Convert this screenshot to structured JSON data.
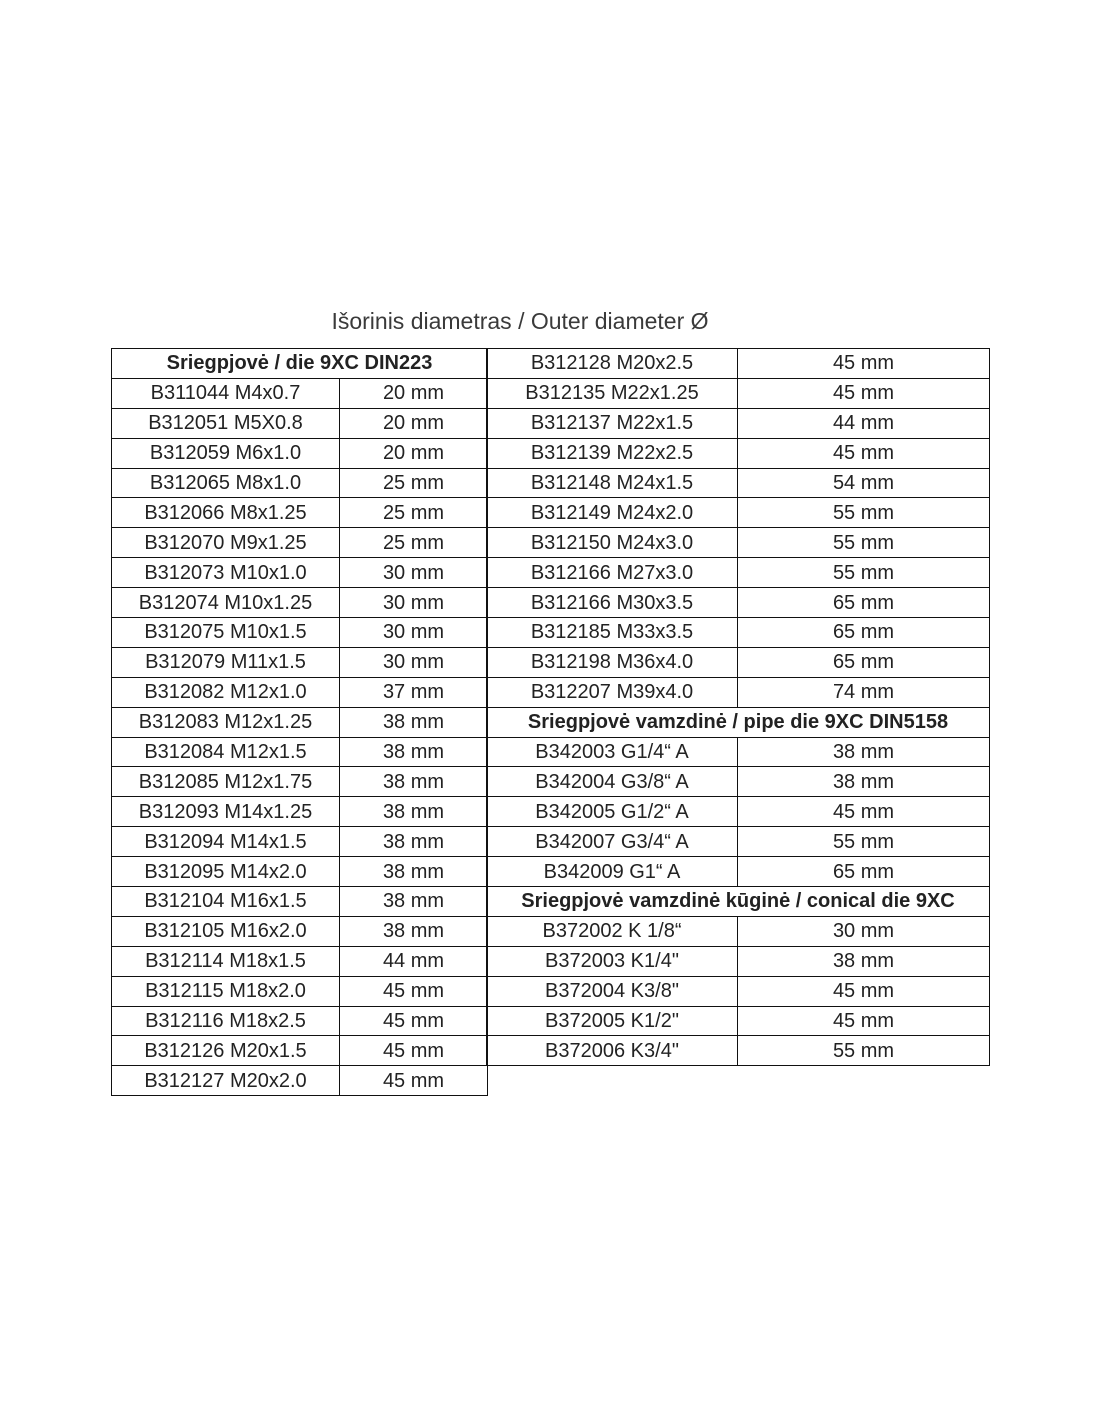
{
  "title": "Išorinis diametras / Outer diameter Ø",
  "left_table": {
    "rows": [
      {
        "header": "Sriegpjovė / die 9XC DIN223"
      },
      {
        "code": "B311044 M4x0.7",
        "diameter": "20 mm"
      },
      {
        "code": "B312051 M5X0.8",
        "diameter": "20 mm"
      },
      {
        "code": "B312059 M6x1.0",
        "diameter": "20 mm"
      },
      {
        "code": "B312065 M8x1.0",
        "diameter": "25 mm"
      },
      {
        "code": "B312066 M8x1.25",
        "diameter": "25 mm"
      },
      {
        "code": "B312070 M9x1.25",
        "diameter": "25 mm"
      },
      {
        "code": "B312073 M10x1.0",
        "diameter": "30 mm"
      },
      {
        "code": "B312074 M10x1.25",
        "diameter": "30 mm"
      },
      {
        "code": "B312075 M10x1.5",
        "diameter": "30 mm"
      },
      {
        "code": "B312079 M11x1.5",
        "diameter": "30 mm"
      },
      {
        "code": "B312082 M12x1.0",
        "diameter": "37 mm"
      },
      {
        "code": "B312083 M12x1.25",
        "diameter": "38 mm"
      },
      {
        "code": "B312084 M12x1.5",
        "diameter": "38 mm"
      },
      {
        "code": "B312085 M12x1.75",
        "diameter": "38 mm"
      },
      {
        "code": "B312093 M14x1.25",
        "diameter": "38 mm"
      },
      {
        "code": "B312094 M14x1.5",
        "diameter": "38 mm"
      },
      {
        "code": "B312095 M14x2.0",
        "diameter": "38 mm"
      },
      {
        "code": "B312104 M16x1.5",
        "diameter": "38 mm"
      },
      {
        "code": "B312105 M16x2.0",
        "diameter": "38 mm"
      },
      {
        "code": "B312114 M18x1.5",
        "diameter": "44 mm"
      },
      {
        "code": "B312115 M18x2.0",
        "diameter": "45 mm"
      },
      {
        "code": "B312116 M18x2.5",
        "diameter": "45 mm"
      },
      {
        "code": "B312126 M20x1.5",
        "diameter": "45 mm"
      },
      {
        "code": "B312127 M20x2.0",
        "diameter": "45 mm"
      }
    ]
  },
  "right_table": {
    "rows": [
      {
        "code": "B312128 M20x2.5",
        "diameter": "45 mm"
      },
      {
        "code": "B312135 M22x1.25",
        "diameter": "45 mm"
      },
      {
        "code": "B312137 M22x1.5",
        "diameter": "44 mm"
      },
      {
        "code": "B312139 M22x2.5",
        "diameter": "45 mm"
      },
      {
        "code": "B312148 M24x1.5",
        "diameter": "54 mm"
      },
      {
        "code": "B312149 M24x2.0",
        "diameter": "55 mm"
      },
      {
        "code": "B312150 M24x3.0",
        "diameter": "55 mm"
      },
      {
        "code": "B312166 M27x3.0",
        "diameter": "55 mm"
      },
      {
        "code": "B312166 M30x3.5",
        "diameter": "65 mm"
      },
      {
        "code": "B312185 M33x3.5",
        "diameter": "65 mm"
      },
      {
        "code": "B312198 M36x4.0",
        "diameter": "65 mm"
      },
      {
        "code": "B312207 M39x4.0",
        "diameter": "74 mm"
      },
      {
        "header": "Sriegpjovė vamzdinė / pipe die 9XC DIN5158"
      },
      {
        "code": "B342003 G1/4“ A",
        "diameter": "38 mm"
      },
      {
        "code": "B342004 G3/8“ A",
        "diameter": "38 mm"
      },
      {
        "code": "B342005 G1/2“ A",
        "diameter": "45 mm"
      },
      {
        "code": "B342007 G3/4“ A",
        "diameter": "55 mm"
      },
      {
        "code": "B342009 G1“ A",
        "diameter": "65 mm"
      },
      {
        "header": "Sriegpjovė vamzdinė kūginė / conical die 9XC"
      },
      {
        "code": "B372002 K 1/8“",
        "diameter": "30 mm"
      },
      {
        "code": "B372003 K1/4\"",
        "diameter": "38 mm"
      },
      {
        "code": "B372004 K3/8\"",
        "diameter": "45 mm"
      },
      {
        "code": "B372005 K1/2\"",
        "diameter": "45 mm"
      },
      {
        "code": "B372006 K3/4\"",
        "diameter": "55 mm"
      }
    ]
  }
}
